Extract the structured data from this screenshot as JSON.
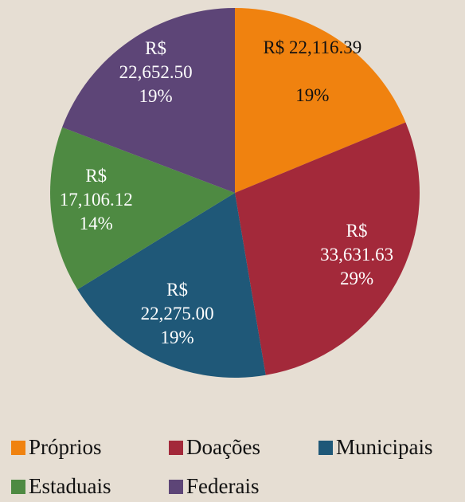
{
  "chart_data": {
    "type": "pie",
    "categories": [
      "Próprios",
      "Doações",
      "Municipais",
      "Estaduais",
      "Federais"
    ],
    "values": [
      22116.39,
      33631.63,
      22275.0,
      17106.12,
      22652.5
    ],
    "value_labels": [
      "R$ 22,116.39",
      "R$ 33,631.63",
      "R$ 22,275.00",
      "R$ 17,106.12",
      "R$ 22,652.50"
    ],
    "percent_labels": [
      "19%",
      "29%",
      "19%",
      "14%",
      "19%"
    ],
    "colors": [
      "#f0820f",
      "#a3293a",
      "#1f5878",
      "#4e8a42",
      "#5d4577"
    ],
    "label_colors": [
      "#111111",
      "#ffffff",
      "#ffffff",
      "#ffffff",
      "#ffffff"
    ],
    "legend": "bottom"
  }
}
